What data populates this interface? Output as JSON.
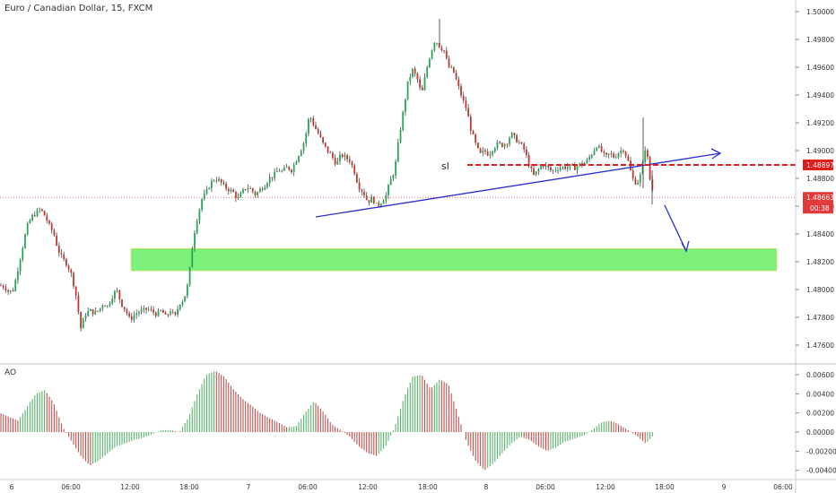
{
  "chart_data": {
    "type": "candlestick",
    "title": "Euro / Canadian Dollar, 15, FXCM",
    "y_ticks": [
      "1.50000",
      "1.49800",
      "1.49600",
      "1.49400",
      "1.49200",
      "1.49000",
      "1.48800",
      "1.48600",
      "1.48400",
      "1.48200",
      "1.48000",
      "1.47800",
      "1.47600"
    ],
    "x_ticks": [
      "6",
      "06:00",
      "12:00",
      "18:00",
      "7",
      "06:00",
      "12:00",
      "18:00",
      "8",
      "06:00",
      "12:00",
      "18:00",
      "9",
      "06:00"
    ],
    "price_tags": {
      "sl_level": "1.48897",
      "last_price": "1.48663",
      "countdown": "00:38"
    },
    "annotations": {
      "sl_text": "sl"
    },
    "close_path": [
      [
        0,
        1.4803
      ],
      [
        5,
        1.4802
      ],
      [
        10,
        1.4798
      ],
      [
        15,
        1.48
      ],
      [
        20,
        1.4815
      ],
      [
        25,
        1.483
      ],
      [
        30,
        1.4845
      ],
      [
        35,
        1.4852
      ],
      [
        40,
        1.4855
      ],
      [
        45,
        1.4858
      ],
      [
        50,
        1.4853
      ],
      [
        55,
        1.4846
      ],
      [
        60,
        1.484
      ],
      [
        65,
        1.4828
      ],
      [
        70,
        1.4822
      ],
      [
        75,
        1.4818
      ],
      [
        80,
        1.481
      ],
      [
        85,
        1.4795
      ],
      [
        90,
        1.4772
      ],
      [
        95,
        1.4782
      ],
      [
        100,
        1.4785
      ],
      [
        105,
        1.4783
      ],
      [
        110,
        1.4785
      ],
      [
        115,
        1.479
      ],
      [
        120,
        1.4788
      ],
      [
        125,
        1.4795
      ],
      [
        130,
        1.48
      ],
      [
        135,
        1.479
      ],
      [
        140,
        1.4785
      ],
      [
        145,
        1.4778
      ],
      [
        150,
        1.4782
      ],
      [
        155,
        1.4784
      ],
      [
        160,
        1.4785
      ],
      [
        165,
        1.4786
      ],
      [
        170,
        1.4784
      ],
      [
        175,
        1.4782
      ],
      [
        180,
        1.4785
      ],
      [
        185,
        1.478
      ],
      [
        190,
        1.4785
      ],
      [
        195,
        1.478
      ],
      [
        200,
        1.479
      ],
      [
        205,
        1.4793
      ],
      [
        210,
        1.4805
      ],
      [
        215,
        1.4835
      ],
      [
        220,
        1.4852
      ],
      [
        225,
        1.4865
      ],
      [
        230,
        1.487
      ],
      [
        235,
        1.4877
      ],
      [
        240,
        1.488
      ],
      [
        245,
        1.4878
      ],
      [
        250,
        1.4874
      ],
      [
        255,
        1.4872
      ],
      [
        260,
        1.487
      ],
      [
        265,
        1.4865
      ],
      [
        270,
        1.487
      ],
      [
        275,
        1.4874
      ],
      [
        280,
        1.4872
      ],
      [
        285,
        1.4868
      ],
      [
        290,
        1.4872
      ],
      [
        295,
        1.4875
      ],
      [
        300,
        1.488
      ],
      [
        305,
        1.4882
      ],
      [
        310,
        1.4886
      ],
      [
        315,
        1.4885
      ],
      [
        320,
        1.4888
      ],
      [
        325,
        1.4886
      ],
      [
        330,
        1.4893
      ],
      [
        335,
        1.49
      ],
      [
        340,
        1.4908
      ],
      [
        345,
        1.4926
      ],
      [
        350,
        1.4918
      ],
      [
        355,
        1.4912
      ],
      [
        360,
        1.4905
      ],
      [
        365,
        1.49
      ],
      [
        370,
        1.4896
      ],
      [
        375,
        1.489
      ],
      [
        380,
        1.4897
      ],
      [
        385,
        1.4895
      ],
      [
        390,
        1.4893
      ],
      [
        395,
        1.4885
      ],
      [
        400,
        1.4874
      ],
      [
        405,
        1.487
      ],
      [
        410,
        1.4863
      ],
      [
        415,
        1.4866
      ],
      [
        420,
        1.486
      ],
      [
        425,
        1.4863
      ],
      [
        430,
        1.4867
      ],
      [
        435,
        1.4878
      ],
      [
        440,
        1.4886
      ],
      [
        445,
        1.491
      ],
      [
        450,
        1.493
      ],
      [
        455,
        1.495
      ],
      [
        460,
        1.4958
      ],
      [
        465,
        1.4952
      ],
      [
        470,
        1.494
      ],
      [
        475,
        1.4957
      ],
      [
        480,
        1.497
      ],
      [
        485,
        1.498
      ],
      [
        490,
        1.4975
      ],
      [
        495,
        1.4972
      ],
      [
        500,
        1.496
      ],
      [
        505,
        1.4958
      ],
      [
        510,
        1.4948
      ],
      [
        515,
        1.4938
      ],
      [
        520,
        1.493
      ],
      [
        525,
        1.4915
      ],
      [
        530,
        1.4905
      ],
      [
        535,
        1.4897
      ],
      [
        540,
        1.49
      ],
      [
        545,
        1.4897
      ],
      [
        550,
        1.4902
      ],
      [
        555,
        1.4905
      ],
      [
        560,
        1.4904
      ],
      [
        565,
        1.4906
      ],
      [
        570,
        1.4912
      ],
      [
        575,
        1.4908
      ],
      [
        580,
        1.4905
      ],
      [
        585,
        1.49
      ],
      [
        590,
        1.4889
      ],
      [
        595,
        1.4882
      ],
      [
        600,
        1.4886
      ],
      [
        605,
        1.489
      ],
      [
        610,
        1.4888
      ],
      [
        615,
        1.4885
      ],
      [
        620,
        1.4887
      ],
      [
        625,
        1.4888
      ],
      [
        630,
        1.4888
      ],
      [
        635,
        1.4889
      ],
      [
        640,
        1.4887
      ],
      [
        645,
        1.489
      ],
      [
        650,
        1.489
      ],
      [
        655,
        1.4893
      ],
      [
        660,
        1.4898
      ],
      [
        665,
        1.4904
      ],
      [
        670,
        1.49
      ],
      [
        675,
        1.4895
      ],
      [
        680,
        1.4898
      ],
      [
        685,
        1.4895
      ],
      [
        690,
        1.4899
      ],
      [
        695,
        1.4901
      ],
      [
        700,
        1.4893
      ],
      [
        705,
        1.488
      ],
      [
        710,
        1.4876
      ],
      [
        715,
        1.4884
      ],
      [
        720,
        1.4905
      ],
      [
        725,
        1.4877
      ],
      [
        730,
        1.4866
      ]
    ],
    "ao_series": [
      {
        "name": "AO"
      }
    ],
    "ao_y_ticks": [
      "0.00600",
      "0.00400",
      "0.00200",
      "0.00000",
      "-0.00200",
      "-0.00400"
    ],
    "ao_values": [
      [
        0,
        0.002
      ],
      [
        10,
        0.0016
      ],
      [
        20,
        0.0012
      ],
      [
        30,
        0.0026
      ],
      [
        40,
        0.004
      ],
      [
        50,
        0.0044
      ],
      [
        60,
        0.003
      ],
      [
        70,
        0.0005
      ],
      [
        80,
        -0.001
      ],
      [
        90,
        -0.0025
      ],
      [
        100,
        -0.0035
      ],
      [
        110,
        -0.003
      ],
      [
        120,
        -0.0022
      ],
      [
        130,
        -0.0015
      ],
      [
        140,
        -0.0012
      ],
      [
        150,
        -0.0008
      ],
      [
        160,
        -0.0006
      ],
      [
        170,
        -0.0002
      ],
      [
        180,
        0.0002
      ],
      [
        190,
        0.0002
      ],
      [
        200,
        0.0
      ],
      [
        210,
        0.0015
      ],
      [
        220,
        0.004
      ],
      [
        230,
        0.006
      ],
      [
        240,
        0.0064
      ],
      [
        250,
        0.0058
      ],
      [
        260,
        0.0045
      ],
      [
        270,
        0.0035
      ],
      [
        280,
        0.0028
      ],
      [
        290,
        0.002
      ],
      [
        300,
        0.0015
      ],
      [
        310,
        0.001
      ],
      [
        320,
        0.0005
      ],
      [
        330,
        0.0006
      ],
      [
        340,
        0.002
      ],
      [
        350,
        0.0032
      ],
      [
        360,
        0.0022
      ],
      [
        370,
        0.0008
      ],
      [
        380,
        0.0002
      ],
      [
        390,
        -0.0005
      ],
      [
        400,
        -0.0015
      ],
      [
        410,
        -0.0022
      ],
      [
        420,
        -0.0025
      ],
      [
        430,
        -0.0015
      ],
      [
        440,
        0.0005
      ],
      [
        450,
        0.0035
      ],
      [
        460,
        0.0058
      ],
      [
        470,
        0.006
      ],
      [
        480,
        0.0045
      ],
      [
        490,
        0.0055
      ],
      [
        500,
        0.005
      ],
      [
        510,
        0.002
      ],
      [
        520,
        -0.001
      ],
      [
        530,
        -0.003
      ],
      [
        540,
        -0.004
      ],
      [
        550,
        -0.0033
      ],
      [
        560,
        -0.0022
      ],
      [
        570,
        -0.0012
      ],
      [
        580,
        -0.0005
      ],
      [
        590,
        -0.0008
      ],
      [
        600,
        -0.0015
      ],
      [
        610,
        -0.002
      ],
      [
        620,
        -0.0016
      ],
      [
        630,
        -0.001
      ],
      [
        640,
        -0.0007
      ],
      [
        650,
        -0.0004
      ],
      [
        660,
        0.0002
      ],
      [
        670,
        0.001
      ],
      [
        680,
        0.0012
      ],
      [
        690,
        0.0008
      ],
      [
        700,
        0.0002
      ],
      [
        710,
        -0.0004
      ],
      [
        720,
        -0.0012
      ],
      [
        730,
        -0.0002
      ]
    ],
    "zone": {
      "from": 1.48135,
      "to": 1.48295,
      "color": "#7df07a"
    },
    "colors": {
      "up": "#26a65b",
      "down": "#c0392b",
      "ao_up": "#57b36a",
      "ao_down": "#c0504d",
      "trend": "#2a2fcf",
      "sl_line": "#e01b1b",
      "last_price": "#e23a3a",
      "axis": "#c9ccd4"
    },
    "ylim": [
      1.4752,
      1.5008
    ],
    "ao_ylim": [
      -0.005,
      0.0072
    ]
  }
}
